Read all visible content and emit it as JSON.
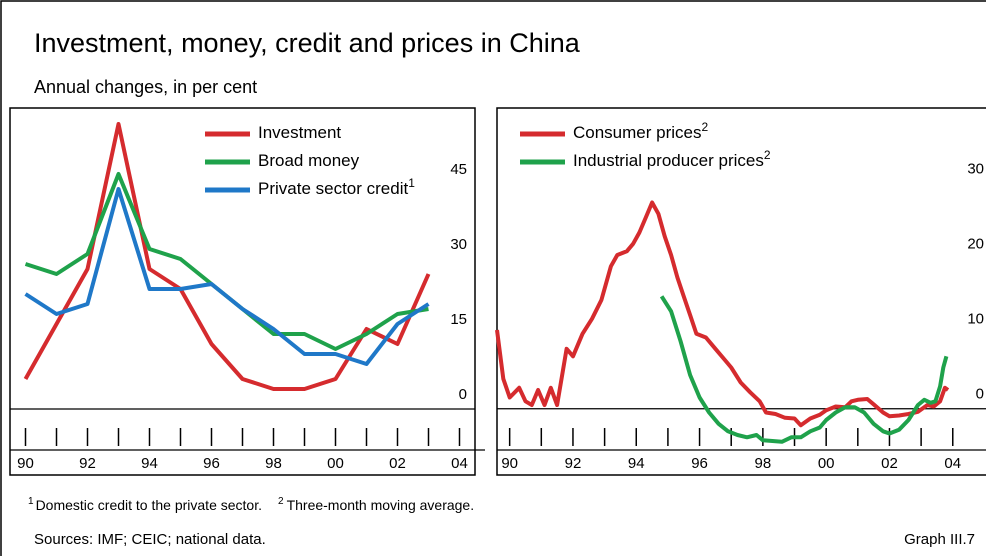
{
  "title": "Investment, money, credit and prices in China",
  "subtitle": "Annual changes, in per cent",
  "footnotes": [
    {
      "mark": "1",
      "text": "Domestic credit to the private sector."
    },
    {
      "mark": "2",
      "text": "Three-month moving average."
    }
  ],
  "sources": "Sources: IMF; CEIC; national data.",
  "graph_label": "Graph III.7",
  "chart_data": [
    {
      "type": "line",
      "x": [
        1990,
        1991,
        1992,
        1993,
        1994,
        1995,
        1996,
        1997,
        1998,
        1999,
        2000,
        2001,
        2002,
        2003
      ],
      "series": [
        {
          "name": "Investment",
          "color": "#d52b2e",
          "values": [
            6,
            17,
            28,
            57,
            28,
            24,
            13,
            6,
            4,
            4,
            6,
            16,
            13,
            27
          ]
        },
        {
          "name": "Broad money",
          "color": "#1fa24b",
          "values": [
            29,
            27,
            31,
            47,
            32,
            30,
            25,
            20,
            15,
            15,
            12,
            15,
            19,
            20
          ]
        },
        {
          "name": "Private sector credit",
          "note": "1",
          "color": "#1f78c8",
          "values": [
            23,
            19,
            21,
            44,
            24,
            24,
            25,
            20,
            16,
            11,
            11,
            9,
            17,
            21
          ]
        }
      ],
      "xlim": [
        1989.5,
        2004.5
      ],
      "xticks": [
        {
          "value": 1990,
          "label": "90"
        },
        {
          "value": 1992,
          "label": "92"
        },
        {
          "value": 1994,
          "label": "94"
        },
        {
          "value": 1996,
          "label": "96"
        },
        {
          "value": 1998,
          "label": "98"
        },
        {
          "value": 2000,
          "label": "00"
        },
        {
          "value": 2002,
          "label": "02"
        },
        {
          "value": 2004,
          "label": "04"
        }
      ],
      "xminor_ticks": [
        1991,
        1993,
        1995,
        1997,
        1999,
        2001,
        2003
      ],
      "ylim": [
        -8.2,
        60.2
      ],
      "yticks": [
        0,
        15,
        30,
        45
      ]
    },
    {
      "type": "line",
      "series": [
        {
          "name": "Consumer prices",
          "note": "2",
          "color": "#d52b2e",
          "x": [
            1989.6,
            1989.8,
            1990.0,
            1990.3,
            1990.5,
            1990.7,
            1990.9,
            1991.1,
            1991.3,
            1991.5,
            1991.8,
            1992.0,
            1992.3,
            1992.6,
            1992.9,
            1993.2,
            1993.4,
            1993.7,
            1993.9,
            1994.1,
            1994.3,
            1994.5,
            1994.7,
            1994.9,
            1995.1,
            1995.3,
            1995.5,
            1995.7,
            1995.9,
            1996.2,
            1996.5,
            1996.8,
            1997.0,
            1997.3,
            1997.6,
            1997.9,
            1998.1,
            1998.4,
            1998.7,
            1999.0,
            1999.2,
            1999.5,
            1999.8,
            2000.0,
            2000.3,
            2000.6,
            2000.8,
            2001.0,
            2001.3,
            2001.5,
            2001.8,
            2002.0,
            2002.3,
            2002.6,
            2002.9,
            2003.2,
            2003.4,
            2003.6,
            2003.75,
            2003.85
          ],
          "values": [
            10.5,
            4,
            1.5,
            2.8,
            1,
            0.5,
            2.5,
            0.5,
            2.8,
            0.5,
            8,
            7,
            10,
            12,
            14.5,
            19,
            20.5,
            21,
            22,
            23.5,
            25.5,
            27.5,
            26,
            23,
            20.5,
            17.5,
            15,
            12.5,
            10,
            9.5,
            8,
            6.5,
            5.5,
            3.5,
            2.2,
            1,
            -0.5,
            -0.7,
            -1.2,
            -1.3,
            -2.2,
            -1.3,
            -0.8,
            -0.2,
            0.3,
            0.2,
            1,
            1.2,
            1.3,
            0.6,
            -0.5,
            -1,
            -0.9,
            -0.7,
            -0.4,
            0.5,
            0.3,
            1,
            2.8,
            2.5
          ]
        },
        {
          "name": "Industrial producer prices",
          "note": "2",
          "color": "#1fa24b",
          "x": [
            1994.8,
            1995.1,
            1995.4,
            1995.7,
            1996.0,
            1996.3,
            1996.6,
            1996.9,
            1997.2,
            1997.5,
            1997.8,
            1998.0,
            1998.3,
            1998.6,
            1998.9,
            1999.2,
            1999.5,
            1999.8,
            2000.0,
            2000.3,
            2000.6,
            2000.9,
            2001.2,
            2001.5,
            2001.8,
            2002.0,
            2002.3,
            2002.6,
            2002.9,
            2003.1,
            2003.3,
            2003.45,
            2003.6,
            2003.7,
            2003.8
          ],
          "values": [
            15,
            13,
            9,
            4.5,
            1.5,
            -0.5,
            -2,
            -3,
            -3.5,
            -3.8,
            -3.5,
            -4.2,
            -4.3,
            -4.4,
            -3.8,
            -3.8,
            -3,
            -2.5,
            -1.5,
            -0.5,
            0.2,
            0.2,
            -0.5,
            -2,
            -3,
            -3.3,
            -2.8,
            -1.5,
            0.5,
            1.2,
            0.8,
            1,
            3,
            5.5,
            7
          ]
        }
      ],
      "xlim": [
        1989.6,
        2005.05
      ],
      "xticks": [
        {
          "value": 1990,
          "label": "90"
        },
        {
          "value": 1992,
          "label": "92"
        },
        {
          "value": 1994,
          "label": "94"
        },
        {
          "value": 1996,
          "label": "96"
        },
        {
          "value": 1998,
          "label": "98"
        },
        {
          "value": 2000,
          "label": "00"
        },
        {
          "value": 2002,
          "label": "02"
        },
        {
          "value": 2004,
          "label": "04"
        }
      ],
      "xminor_ticks": [
        1991,
        1993,
        1995,
        1997,
        1999,
        2001,
        2003
      ],
      "ylim": [
        -5.5,
        40.1
      ],
      "yticks": [
        0,
        10,
        20,
        30
      ]
    }
  ]
}
